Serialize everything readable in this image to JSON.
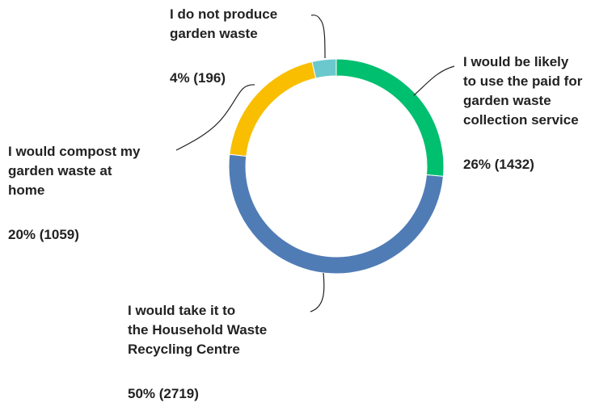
{
  "chart_data": {
    "type": "pie",
    "style": "donut",
    "title": "",
    "slices": [
      {
        "label_lines": [
          "I would be likely",
          "to use the paid for",
          "garden waste",
          "collection service"
        ],
        "value_text": "26% (1432)",
        "percent": 26,
        "count": 1432,
        "color": "#00bf6f"
      },
      {
        "label_lines": [
          "I would take it to",
          "the Household Waste",
          "Recycling Centre"
        ],
        "value_text": "50% (2719)",
        "percent": 50,
        "count": 2719,
        "color": "#507cb6"
      },
      {
        "label_lines": [
          "I would compost my",
          "garden waste at",
          "home"
        ],
        "value_text": "20% (1059)",
        "percent": 20,
        "count": 1059,
        "color": "#f9be00"
      },
      {
        "label_lines": [
          "I do not produce",
          "garden waste"
        ],
        "value_text": "4% (196)",
        "percent": 4,
        "count": 196,
        "color": "#6bc8cd"
      }
    ]
  }
}
